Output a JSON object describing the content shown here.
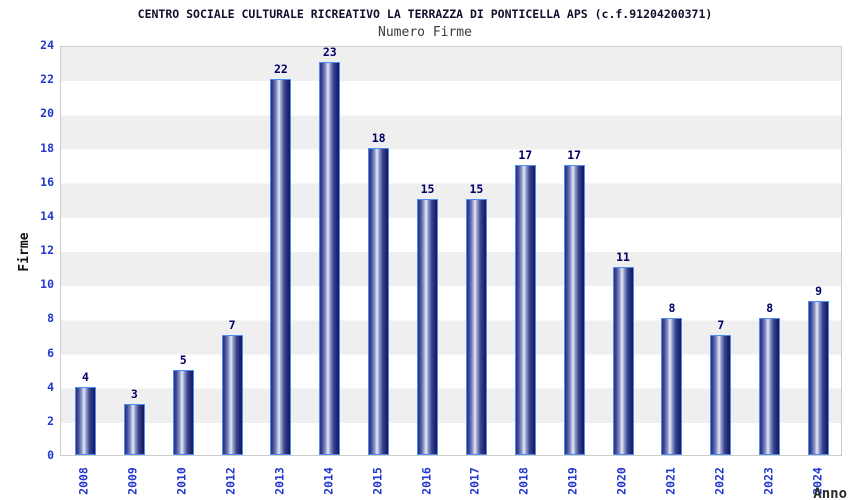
{
  "header": {
    "title": "CENTRO SOCIALE CULTURALE RICREATIVO LA TERRAZZA DI PONTICELLA APS (c.f.91204200371)",
    "subtitle": "Numero Firme"
  },
  "axes": {
    "y_label": "Firme",
    "x_label": "Anno",
    "y_ticks": [
      0,
      2,
      4,
      6,
      8,
      10,
      12,
      14,
      16,
      18,
      20,
      22,
      24
    ]
  },
  "chart_data": {
    "type": "bar",
    "title": "CENTRO SOCIALE CULTURALE RICREATIVO LA TERRAZZA DI PONTICELLA APS (c.f.91204200371)",
    "subtitle": "Numero Firme",
    "xlabel": "Anno",
    "ylabel": "Firme",
    "categories": [
      "2008",
      "2009",
      "2010",
      "2012",
      "2013",
      "2014",
      "2015",
      "2016",
      "2017",
      "2018",
      "2019",
      "2020",
      "2021",
      "2022",
      "2023",
      "2024"
    ],
    "values": [
      4,
      3,
      5,
      7,
      22,
      23,
      18,
      15,
      15,
      17,
      17,
      11,
      8,
      7,
      8,
      9
    ],
    "ylim": [
      0,
      24
    ],
    "ytick_step": 2,
    "bar_value_labels": true,
    "x_tick_rotation": -90,
    "grid": "alternating horizontal bands every 2 units",
    "legend_position": "none"
  },
  "colors": {
    "tick_label_blue": "#2338cc",
    "value_label_navy": "#000066",
    "title_color": "#10102c",
    "subtitle_color": "#3c3c3c",
    "band_gray": "#efefef",
    "band_white": "#ffffff",
    "plot_border": "#cccccc",
    "bar_border_lightblue": "#4d8df0",
    "bar_gradient_dark": "#1c2470",
    "bar_gradient_light": "#e8ebf7"
  }
}
